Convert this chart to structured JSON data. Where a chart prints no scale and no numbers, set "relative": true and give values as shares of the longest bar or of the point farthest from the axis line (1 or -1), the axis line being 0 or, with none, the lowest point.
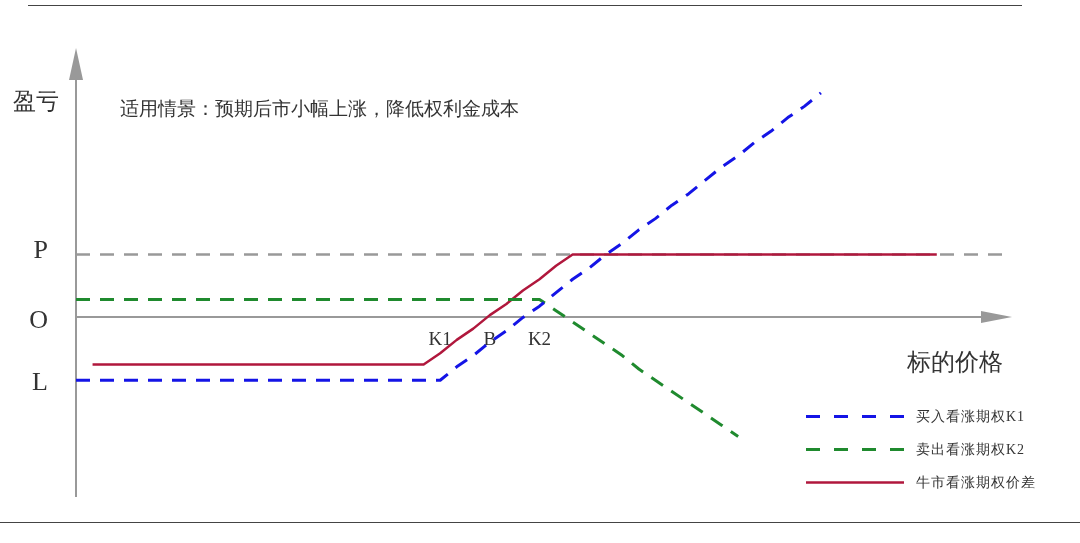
{
  "chart_data": {
    "type": "line",
    "relative": true,
    "ylabel": "盈亏",
    "xlabel": "标的价格",
    "annotations": [
      "适用情景：预期后市小幅上涨，降低权利金成本",
      "O",
      "L"
    ],
    "categories": [
      null,
      null,
      null,
      null,
      null,
      null,
      null,
      null,
      null,
      null,
      null,
      null,
      null,
      null,
      null,
      null,
      null,
      null,
      null,
      null,
      null,
      null,
      "K1",
      null,
      null,
      "B",
      null,
      null,
      "K2",
      null,
      null,
      null,
      null,
      null,
      null,
      null,
      null,
      null,
      null,
      null,
      null,
      null,
      null,
      null,
      null,
      null,
      null,
      null,
      null,
      null,
      null,
      null,
      null,
      null,
      null,
      null,
      null
    ],
    "ref_lines": [
      {
        "axis": "y",
        "value": 0.28,
        "label": "P",
        "color": "#999999",
        "line_style": "dashed"
      }
    ],
    "legend": "bottom right",
    "marker": "none",
    "series": [
      {
        "name": "买入看涨期权K1",
        "color": "#1414e6",
        "line_style": "dashed",
        "values": [
          -0.28,
          -0.28,
          -0.28,
          -0.28,
          -0.28,
          -0.28,
          -0.28,
          -0.28,
          -0.28,
          -0.28,
          -0.28,
          -0.28,
          -0.28,
          -0.28,
          -0.28,
          -0.28,
          -0.28,
          -0.28,
          -0.28,
          -0.28,
          -0.28,
          -0.28,
          -0.28,
          -0.22,
          -0.17,
          -0.11,
          -0.06,
          0.0,
          0.05,
          0.11,
          0.17,
          0.22,
          0.28,
          0.33,
          0.39,
          0.44,
          0.5,
          0.55,
          0.61,
          0.67,
          0.72,
          0.78,
          0.83,
          0.89,
          0.94,
          1,
          null,
          null,
          null,
          null,
          null,
          null,
          null,
          null,
          null,
          null,
          null
        ]
      },
      {
        "name": "卖出看涨期权K2",
        "color": "#1f8a2e",
        "line_style": "dashed",
        "values": [
          0.08,
          0.08,
          0.08,
          0.08,
          0.08,
          0.08,
          0.08,
          0.08,
          0.08,
          0.08,
          0.08,
          0.08,
          0.08,
          0.08,
          0.08,
          0.08,
          0.08,
          0.08,
          0.08,
          0.08,
          0.08,
          0.08,
          0.08,
          0.08,
          0.08,
          0.08,
          0.08,
          0.08,
          0.08,
          0.03,
          -0.02,
          -0.07,
          -0.12,
          -0.17,
          -0.23,
          -0.28,
          -0.33,
          -0.38,
          -0.43,
          -0.48,
          -0.53,
          null,
          null,
          null,
          null,
          null,
          null,
          null,
          null,
          null,
          null,
          null,
          null,
          null,
          null,
          null,
          null
        ]
      },
      {
        "name": "牛市看涨期权价差",
        "color": "#b0173c",
        "line_style": "solid",
        "values": [
          null,
          -0.21,
          -0.21,
          -0.21,
          -0.21,
          -0.21,
          -0.21,
          -0.21,
          -0.21,
          -0.21,
          -0.21,
          -0.21,
          -0.21,
          -0.21,
          -0.21,
          -0.21,
          -0.21,
          -0.21,
          -0.21,
          -0.21,
          -0.21,
          -0.21,
          -0.16,
          -0.1,
          -0.05,
          0.01,
          0.06,
          0.12,
          0.17,
          0.23,
          0.28,
          0.28,
          0.28,
          0.28,
          0.28,
          0.28,
          0.28,
          0.28,
          0.28,
          0.28,
          0.28,
          0.28,
          0.28,
          0.28,
          0.28,
          0.28,
          0.28,
          0.28,
          0.28,
          0.28,
          0.28,
          0.28,
          0.28,
          null,
          null,
          null,
          null
        ]
      }
    ]
  }
}
